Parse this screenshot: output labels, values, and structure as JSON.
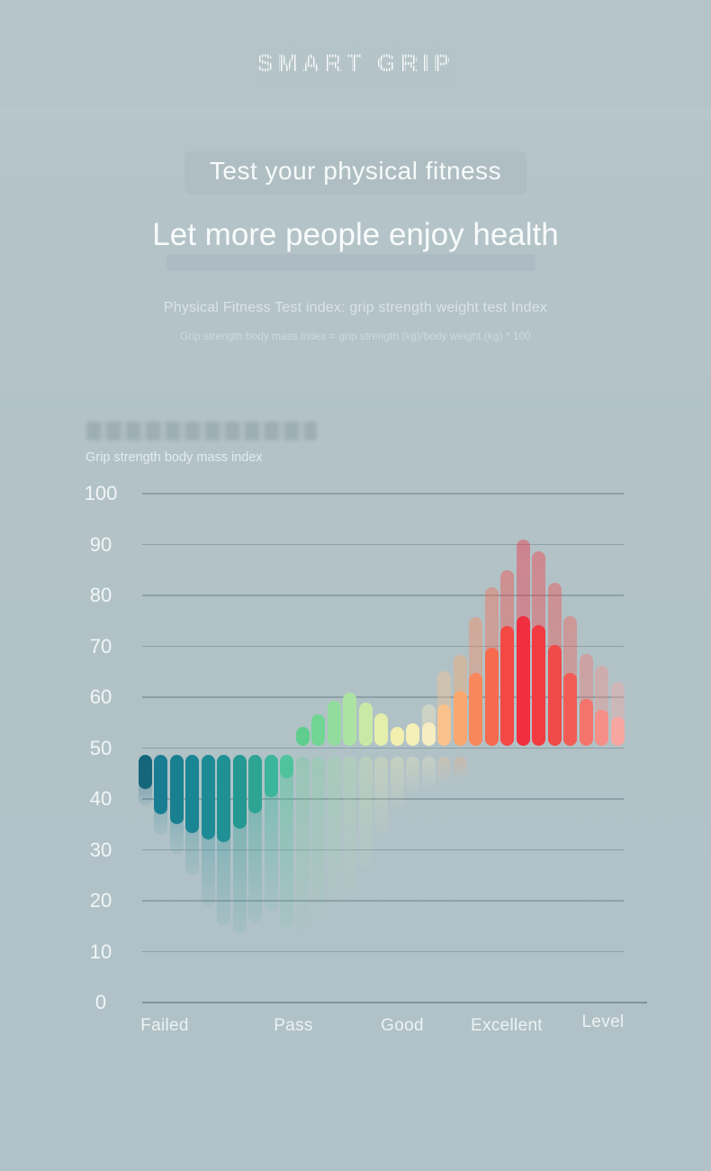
{
  "header": {
    "brand": "SMART GRIP",
    "tagline": "Test your physical fitness",
    "headline": "Let more people enjoy health",
    "index_title": "Physical Fitness Test index: grip strength weight test Index",
    "index_formula": "Grip strength body mass index = grip strength (kg)/body weight (kg) * 100"
  },
  "colors": {
    "background": "#b2c3c8",
    "gridline": "#64787f",
    "text_primary": "#f7fbfb",
    "text_muted": "#d9e4e5"
  },
  "chart_data": {
    "type": "bar",
    "title": "Grip strength body mass index",
    "ylabel": "Grip strength body mass index",
    "xlabel": "Level",
    "ylim": [
      0,
      100
    ],
    "y_ticks": [
      0,
      10,
      20,
      30,
      40,
      50,
      60,
      70,
      80,
      90,
      100
    ],
    "x_labels": [
      "Failed",
      "Pass",
      "Good",
      "Excellent"
    ],
    "x_axis_title": "Level",
    "grid": true,
    "legend": false,
    "down_group_top": 48.6,
    "up_group_baseline": 50.5,
    "bars": [
      {
        "dir": "down",
        "color": "#15657b",
        "value": 42.0,
        "echo": 38.5
      },
      {
        "dir": "down",
        "color": "#187d93",
        "value": 37.0,
        "echo": 33.0
      },
      {
        "dir": "down",
        "color": "#18808f",
        "value": 35.0,
        "echo": 29.0
      },
      {
        "dir": "down",
        "color": "#1a8593",
        "value": 33.3,
        "echo": 25.0
      },
      {
        "dir": "down",
        "color": "#1d8b95",
        "value": 32.0,
        "echo": 19.0
      },
      {
        "dir": "down",
        "color": "#1f9094",
        "value": 31.5,
        "echo": 15.0
      },
      {
        "dir": "down",
        "color": "#249892",
        "value": 34.2,
        "echo": 13.5
      },
      {
        "dir": "down",
        "color": "#2da494",
        "value": 37.2,
        "echo": 15.5
      },
      {
        "dir": "down",
        "color": "#3bb59b",
        "value": 40.4,
        "echo": 17.7
      },
      {
        "dir": "down",
        "color": "#4fc49c",
        "value": 44.0,
        "echo": 14.7
      },
      {
        "dir": "up",
        "color": "#5ecd8d",
        "value": 54.2,
        "refl": 14.0
      },
      {
        "dir": "up",
        "color": "#71d593",
        "value": 56.6,
        "refl": 16.0
      },
      {
        "dir": "up",
        "color": "#92dd9d",
        "value": 59.3,
        "refl": 19.0
      },
      {
        "dir": "up",
        "color": "#abe3a2",
        "value": 60.8,
        "refl": 21.0
      },
      {
        "dir": "up",
        "color": "#c9eaa7",
        "value": 59.0,
        "refl": 26.0
      },
      {
        "dir": "up",
        "color": "#e3efaa",
        "value": 56.8,
        "refl": 33.0
      },
      {
        "dir": "up",
        "color": "#f1f0ae",
        "value": 54.2,
        "refl": 38.0
      },
      {
        "dir": "up",
        "color": "#f4efb6",
        "value": 54.9,
        "refl": 41.0
      },
      {
        "dir": "up",
        "color": "#f6edc2",
        "value": 55.1,
        "refl": 42.0,
        "echo": 58.5
      },
      {
        "dir": "up",
        "color": "#f9c28c",
        "value": 58.6,
        "refl": 43.0,
        "echo": 65.1
      },
      {
        "dir": "up",
        "color": "#f9a76d",
        "value": 61.2,
        "refl": 44.0,
        "echo": 68.3
      },
      {
        "dir": "up",
        "color": "#f8885c",
        "value": 64.8,
        "echo": 75.8
      },
      {
        "dir": "up",
        "color": "#f66a4e",
        "value": 69.7,
        "echo": 81.6
      },
      {
        "dir": "up",
        "color": "#f44845",
        "value": 74.0,
        "echo": 85.0
      },
      {
        "dir": "up",
        "color": "#f12e40",
        "value": 76.0,
        "echo": 91.0
      },
      {
        "dir": "up",
        "color": "#f23b41",
        "value": 74.1,
        "echo": 88.7
      },
      {
        "dir": "up",
        "color": "#f04a49",
        "value": 70.3,
        "echo": 82.5
      },
      {
        "dir": "up",
        "color": "#f25c55",
        "value": 64.8,
        "echo": 75.9
      },
      {
        "dir": "up",
        "color": "#f4746c",
        "value": 59.6,
        "echo": 68.5
      },
      {
        "dir": "up",
        "color": "#f58f88",
        "value": 57.5,
        "echo": 66.2
      },
      {
        "dir": "up",
        "color": "#f7a6a0",
        "value": 56.1,
        "echo": 63.0
      }
    ]
  }
}
